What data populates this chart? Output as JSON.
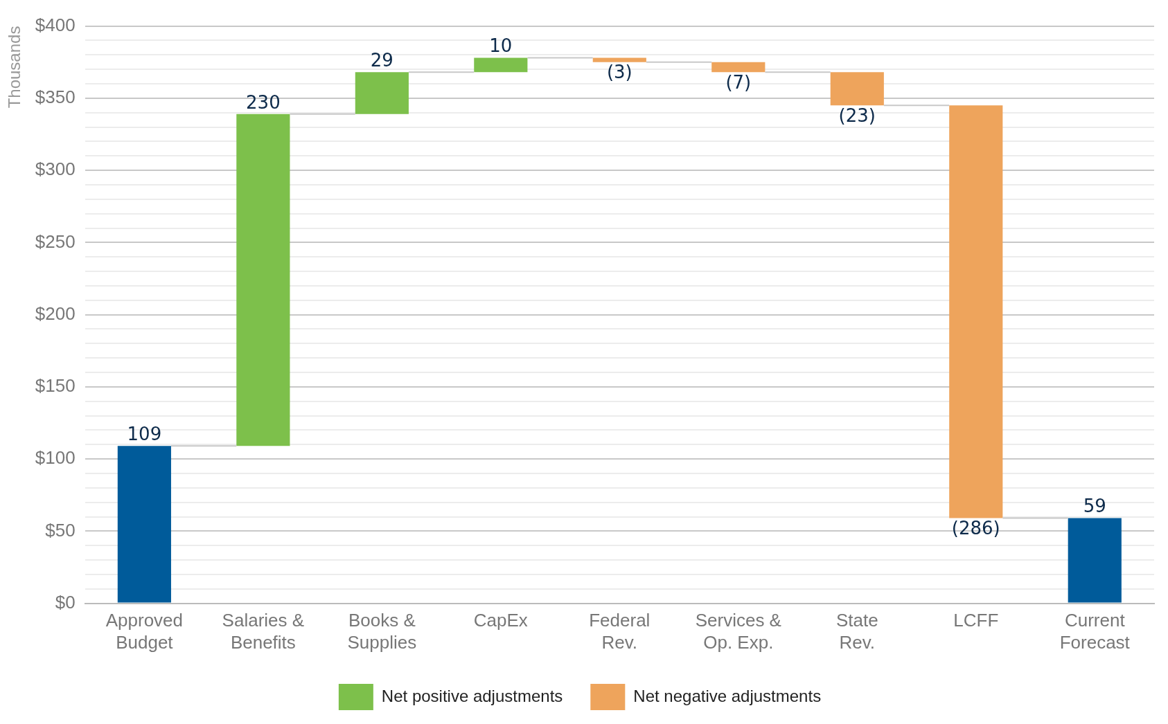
{
  "chart_data": {
    "type": "bar",
    "ylabel": "Thousands",
    "categories": [
      "Approved Budget",
      "Salaries & Benefits",
      "Books & Supplies",
      "CapEx",
      "Federal Rev.",
      "Services & Op. Exp.",
      "State Rev.",
      "LCFF",
      "Current Forecast"
    ],
    "series": [
      {
        "color": "#005b9a",
        "base": [
          0,
          null,
          null,
          null,
          null,
          null,
          null,
          null,
          0
        ],
        "values": [
          109,
          null,
          null,
          null,
          null,
          null,
          null,
          null,
          59
        ],
        "value_labels": [
          "109",
          null,
          null,
          null,
          null,
          null,
          null,
          null,
          "59"
        ]
      },
      {
        "name": "Net positive adjustments",
        "color": "#7dc04b",
        "base": [
          null,
          109,
          339,
          368,
          null,
          null,
          null,
          null,
          null
        ],
        "values": [
          null,
          230,
          29,
          10,
          null,
          null,
          null,
          null,
          null
        ],
        "value_labels": [
          null,
          "230",
          "29",
          "10",
          null,
          null,
          null,
          null,
          null
        ]
      },
      {
        "name": "Net negative adjustments",
        "color": "#eea45c",
        "base": [
          null,
          null,
          null,
          null,
          378,
          375,
          368,
          345,
          null
        ],
        "values": [
          null,
          null,
          null,
          null,
          -3,
          -7,
          -23,
          -286,
          null
        ],
        "value_labels": [
          null,
          null,
          null,
          null,
          "(3)",
          "(7)",
          "(23)",
          "(286)",
          null
        ]
      }
    ],
    "ylim": [
      0,
      400
    ],
    "yticks": [
      {
        "value": 0,
        "label": "$0"
      },
      {
        "value": 10,
        "label": null
      },
      {
        "value": 20,
        "label": null
      },
      {
        "value": 30,
        "label": null
      },
      {
        "value": 40,
        "label": null
      },
      {
        "value": 50,
        "label": "$50"
      },
      {
        "value": 60,
        "label": null
      },
      {
        "value": 70,
        "label": null
      },
      {
        "value": 80,
        "label": null
      },
      {
        "value": 90,
        "label": null
      },
      {
        "value": 100,
        "label": "$100"
      },
      {
        "value": 110,
        "label": null
      },
      {
        "value": 120,
        "label": null
      },
      {
        "value": 130,
        "label": null
      },
      {
        "value": 140,
        "label": null
      },
      {
        "value": 150,
        "label": "$150"
      },
      {
        "value": 160,
        "label": null
      },
      {
        "value": 170,
        "label": null
      },
      {
        "value": 180,
        "label": null
      },
      {
        "value": 190,
        "label": null
      },
      {
        "value": 200,
        "label": "$200"
      },
      {
        "value": 210,
        "label": null
      },
      {
        "value": 220,
        "label": null
      },
      {
        "value": 230,
        "label": null
      },
      {
        "value": 240,
        "label": null
      },
      {
        "value": 250,
        "label": "$250"
      },
      {
        "value": 260,
        "label": null
      },
      {
        "value": 270,
        "label": null
      },
      {
        "value": 280,
        "label": null
      },
      {
        "value": 290,
        "label": null
      },
      {
        "value": 300,
        "label": "$300"
      },
      {
        "value": 310,
        "label": null
      },
      {
        "value": 320,
        "label": null
      },
      {
        "value": 330,
        "label": null
      },
      {
        "value": 340,
        "label": null
      },
      {
        "value": 350,
        "label": "$350"
      },
      {
        "value": 360,
        "label": null
      },
      {
        "value": 370,
        "label": null
      },
      {
        "value": 380,
        "label": null
      },
      {
        "value": 390,
        "label": null
      },
      {
        "value": 400,
        "label": "$400"
      }
    ],
    "grid": "y",
    "legend": "bottom"
  }
}
